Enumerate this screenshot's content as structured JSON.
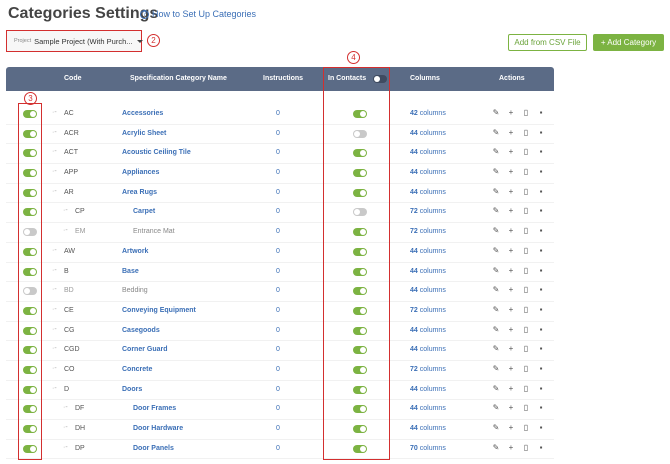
{
  "page": {
    "title": "Categories Settings",
    "help_link": "How to Set Up Categories"
  },
  "project": {
    "label": "Project",
    "value": "Sample Project (With Purch..."
  },
  "callouts": [
    "2",
    "3",
    "4"
  ],
  "buttons": {
    "add_csv": "Add from CSV File",
    "add_category": "+ Add Category"
  },
  "table": {
    "headers": {
      "code": "Code",
      "name": "Specification Category Name",
      "instructions": "Instructions",
      "in_contacts": "In Contacts",
      "columns": "Columns",
      "actions": "Actions"
    },
    "in_contacts_header_toggle": "off",
    "rows": [
      {
        "enabled": true,
        "code": "AC",
        "indent": 0,
        "name": "Accessories",
        "instructions": "0",
        "in_contacts": true,
        "columns": "42",
        "columns_unit": "columns"
      },
      {
        "enabled": true,
        "code": "ACR",
        "indent": 0,
        "name": "Acrylic Sheet",
        "instructions": "0",
        "in_contacts": false,
        "columns": "44",
        "columns_unit": "columns"
      },
      {
        "enabled": true,
        "code": "ACT",
        "indent": 0,
        "name": "Acoustic Ceiling Tile",
        "instructions": "0",
        "in_contacts": true,
        "columns": "44",
        "columns_unit": "columns"
      },
      {
        "enabled": true,
        "code": "APP",
        "indent": 0,
        "name": "Appliances",
        "instructions": "0",
        "in_contacts": true,
        "columns": "44",
        "columns_unit": "columns"
      },
      {
        "enabled": true,
        "code": "AR",
        "indent": 0,
        "name": "Area Rugs",
        "instructions": "0",
        "in_contacts": true,
        "columns": "44",
        "columns_unit": "columns"
      },
      {
        "enabled": true,
        "code": "CP",
        "indent": 1,
        "name": "Carpet",
        "instructions": "0",
        "in_contacts": false,
        "columns": "72",
        "columns_unit": "columns"
      },
      {
        "enabled": false,
        "code": "EM",
        "indent": 1,
        "name": "Entrance Mat",
        "instructions": "0",
        "in_contacts": true,
        "columns": "72",
        "columns_unit": "columns"
      },
      {
        "enabled": true,
        "code": "AW",
        "indent": 0,
        "name": "Artwork",
        "instructions": "0",
        "in_contacts": true,
        "columns": "44",
        "columns_unit": "columns"
      },
      {
        "enabled": true,
        "code": "B",
        "indent": 0,
        "name": "Base",
        "instructions": "0",
        "in_contacts": true,
        "columns": "44",
        "columns_unit": "columns"
      },
      {
        "enabled": false,
        "code": "BD",
        "indent": 0,
        "name": "Bedding",
        "instructions": "0",
        "in_contacts": true,
        "columns": "44",
        "columns_unit": "columns"
      },
      {
        "enabled": true,
        "code": "CE",
        "indent": 0,
        "name": "Conveying Equipment",
        "instructions": "0",
        "in_contacts": true,
        "columns": "72",
        "columns_unit": "columns"
      },
      {
        "enabled": true,
        "code": "CG",
        "indent": 0,
        "name": "Casegoods",
        "instructions": "0",
        "in_contacts": true,
        "columns": "44",
        "columns_unit": "columns"
      },
      {
        "enabled": true,
        "code": "CGD",
        "indent": 0,
        "name": "Corner Guard",
        "instructions": "0",
        "in_contacts": true,
        "columns": "44",
        "columns_unit": "columns"
      },
      {
        "enabled": true,
        "code": "CO",
        "indent": 0,
        "name": "Concrete",
        "instructions": "0",
        "in_contacts": true,
        "columns": "72",
        "columns_unit": "columns"
      },
      {
        "enabled": true,
        "code": "D",
        "indent": 0,
        "name": "Doors",
        "instructions": "0",
        "in_contacts": true,
        "columns": "44",
        "columns_unit": "columns"
      },
      {
        "enabled": true,
        "code": "DF",
        "indent": 1,
        "name": "Door Frames",
        "instructions": "0",
        "in_contacts": true,
        "columns": "44",
        "columns_unit": "columns"
      },
      {
        "enabled": true,
        "code": "DH",
        "indent": 1,
        "name": "Door Hardware",
        "instructions": "0",
        "in_contacts": true,
        "columns": "44",
        "columns_unit": "columns"
      },
      {
        "enabled": true,
        "code": "DP",
        "indent": 1,
        "name": "Door Panels",
        "instructions": "0",
        "in_contacts": true,
        "columns": "70",
        "columns_unit": "columns"
      }
    ]
  },
  "colors": {
    "accent_green": "#7cb342",
    "header_bg": "#5b6b86",
    "link_blue": "#3b6fb6",
    "callout_red": "#d32f2f"
  },
  "icons": {
    "actions": [
      "pencil-icon",
      "plus-icon",
      "document-icon",
      "trash-icon"
    ]
  }
}
